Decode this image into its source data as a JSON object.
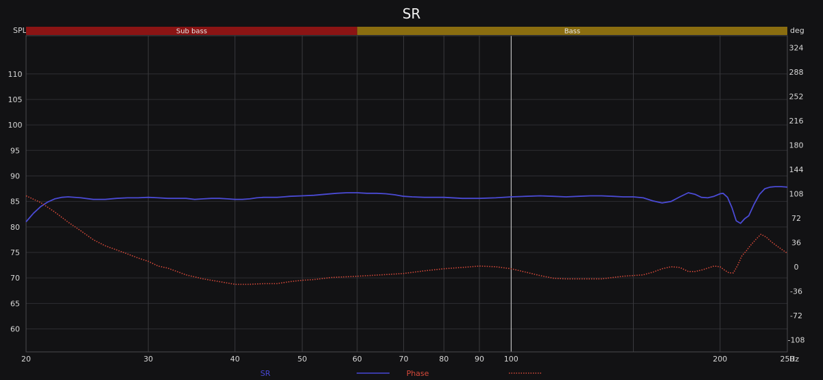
{
  "chart_data": {
    "type": "line",
    "title": "SR",
    "y_left_label": "SPL",
    "y_right_label": "deg",
    "x_unit": "Hz",
    "x_scale": "log",
    "xlim": [
      20,
      250
    ],
    "ylim_left": [
      55.5,
      117.5
    ],
    "ylim_right": [
      -126,
      342
    ],
    "x_ticks": [
      20,
      30,
      40,
      50,
      60,
      70,
      80,
      90,
      100,
      200,
      250
    ],
    "x_tick_labels": [
      "20",
      "30",
      "40",
      "50",
      "60",
      "70",
      "80",
      "90",
      "100",
      "200",
      "250"
    ],
    "x_minor_gridlines": [
      150
    ],
    "y_left_ticks": [
      60,
      65,
      70,
      75,
      80,
      85,
      90,
      95,
      100,
      105,
      110
    ],
    "y_right_ticks": [
      -108,
      -72,
      -36,
      0,
      36,
      72,
      108,
      144,
      180,
      216,
      252,
      288,
      324
    ],
    "grid": true,
    "highlight_x": 100,
    "bands": [
      {
        "label": "Sub bass",
        "from": 20,
        "to": 60,
        "color": "#8b1414"
      },
      {
        "label": "Bass",
        "from": 60,
        "to": 250,
        "color": "#8a6d10"
      }
    ],
    "legend": {
      "placement": "bottom",
      "entries": [
        {
          "name": "SR",
          "color": "#4848d8",
          "style": "solid"
        },
        {
          "name": "Phase",
          "color": "#d84a3a",
          "style": "dotted"
        }
      ]
    },
    "series": [
      {
        "name": "SR",
        "axis": "left",
        "color": "#4b4bd6",
        "style": "solid",
        "points": [
          [
            20,
            81.0
          ],
          [
            20.5,
            82.7
          ],
          [
            21,
            84.0
          ],
          [
            21.5,
            84.9
          ],
          [
            22,
            85.5
          ],
          [
            22.5,
            85.8
          ],
          [
            23,
            85.9
          ],
          [
            24,
            85.7
          ],
          [
            25,
            85.4
          ],
          [
            26,
            85.4
          ],
          [
            27,
            85.6
          ],
          [
            28,
            85.7
          ],
          [
            29,
            85.7
          ],
          [
            30,
            85.8
          ],
          [
            31,
            85.7
          ],
          [
            32,
            85.6
          ],
          [
            34,
            85.6
          ],
          [
            35,
            85.4
          ],
          [
            36,
            85.5
          ],
          [
            37,
            85.6
          ],
          [
            38,
            85.6
          ],
          [
            39,
            85.5
          ],
          [
            40,
            85.4
          ],
          [
            41,
            85.4
          ],
          [
            42,
            85.5
          ],
          [
            43,
            85.7
          ],
          [
            44,
            85.8
          ],
          [
            45,
            85.8
          ],
          [
            46,
            85.8
          ],
          [
            47,
            85.9
          ],
          [
            48,
            86.0
          ],
          [
            50,
            86.1
          ],
          [
            52,
            86.2
          ],
          [
            54,
            86.4
          ],
          [
            56,
            86.6
          ],
          [
            58,
            86.7
          ],
          [
            60,
            86.7
          ],
          [
            62,
            86.6
          ],
          [
            64,
            86.6
          ],
          [
            66,
            86.5
          ],
          [
            68,
            86.3
          ],
          [
            70,
            86.0
          ],
          [
            72,
            85.9
          ],
          [
            75,
            85.8
          ],
          [
            80,
            85.8
          ],
          [
            85,
            85.6
          ],
          [
            90,
            85.6
          ],
          [
            95,
            85.7
          ],
          [
            100,
            85.9
          ],
          [
            105,
            86.0
          ],
          [
            110,
            86.1
          ],
          [
            115,
            86.0
          ],
          [
            120,
            85.9
          ],
          [
            125,
            86.0
          ],
          [
            130,
            86.1
          ],
          [
            135,
            86.1
          ],
          [
            140,
            86.0
          ],
          [
            145,
            85.9
          ],
          [
            150,
            85.9
          ],
          [
            155,
            85.7
          ],
          [
            160,
            85.1
          ],
          [
            165,
            84.7
          ],
          [
            170,
            85.0
          ],
          [
            175,
            85.9
          ],
          [
            180,
            86.7
          ],
          [
            184,
            86.4
          ],
          [
            188,
            85.8
          ],
          [
            192,
            85.7
          ],
          [
            196,
            86.0
          ],
          [
            200,
            86.5
          ],
          [
            202,
            86.6
          ],
          [
            205,
            85.8
          ],
          [
            208,
            83.8
          ],
          [
            211,
            81.2
          ],
          [
            214,
            80.7
          ],
          [
            217,
            81.6
          ],
          [
            220,
            82.2
          ],
          [
            224,
            84.5
          ],
          [
            228,
            86.4
          ],
          [
            232,
            87.5
          ],
          [
            236,
            87.8
          ],
          [
            240,
            87.9
          ],
          [
            245,
            87.9
          ],
          [
            250,
            87.8
          ]
        ]
      },
      {
        "name": "Phase",
        "axis": "right",
        "color": "#d84a3a",
        "style": "dotted",
        "points": [
          [
            20,
            105
          ],
          [
            21,
            95
          ],
          [
            22,
            81
          ],
          [
            23,
            66
          ],
          [
            24,
            53
          ],
          [
            25,
            40
          ],
          [
            26,
            31
          ],
          [
            27,
            25
          ],
          [
            28,
            19
          ],
          [
            29,
            13
          ],
          [
            30,
            8
          ],
          [
            31,
            1
          ],
          [
            32,
            -2
          ],
          [
            34,
            -12
          ],
          [
            36,
            -18
          ],
          [
            38,
            -22
          ],
          [
            40,
            -26
          ],
          [
            42,
            -26
          ],
          [
            44,
            -25
          ],
          [
            46,
            -25
          ],
          [
            48,
            -22
          ],
          [
            50,
            -20
          ],
          [
            52,
            -19
          ],
          [
            55,
            -16
          ],
          [
            60,
            -14
          ],
          [
            65,
            -12
          ],
          [
            70,
            -10
          ],
          [
            75,
            -6
          ],
          [
            80,
            -3
          ],
          [
            85,
            -1
          ],
          [
            90,
            1
          ],
          [
            95,
            0
          ],
          [
            100,
            -3
          ],
          [
            105,
            -8
          ],
          [
            110,
            -13
          ],
          [
            115,
            -17
          ],
          [
            120,
            -18
          ],
          [
            125,
            -18
          ],
          [
            130,
            -18
          ],
          [
            135,
            -18
          ],
          [
            140,
            -16
          ],
          [
            145,
            -14
          ],
          [
            150,
            -13
          ],
          [
            155,
            -12
          ],
          [
            160,
            -8
          ],
          [
            165,
            -3
          ],
          [
            170,
            0
          ],
          [
            175,
            -1
          ],
          [
            180,
            -7
          ],
          [
            184,
            -7
          ],
          [
            188,
            -5
          ],
          [
            192,
            -2
          ],
          [
            196,
            1
          ],
          [
            200,
            0
          ],
          [
            203,
            -5
          ],
          [
            206,
            -9
          ],
          [
            209,
            -9
          ],
          [
            212,
            2
          ],
          [
            215,
            16
          ],
          [
            218,
            23
          ],
          [
            221,
            31
          ],
          [
            225,
            40
          ],
          [
            229,
            48
          ],
          [
            233,
            44
          ],
          [
            237,
            37
          ],
          [
            242,
            30
          ],
          [
            246,
            25
          ],
          [
            250,
            20
          ]
        ]
      }
    ]
  }
}
